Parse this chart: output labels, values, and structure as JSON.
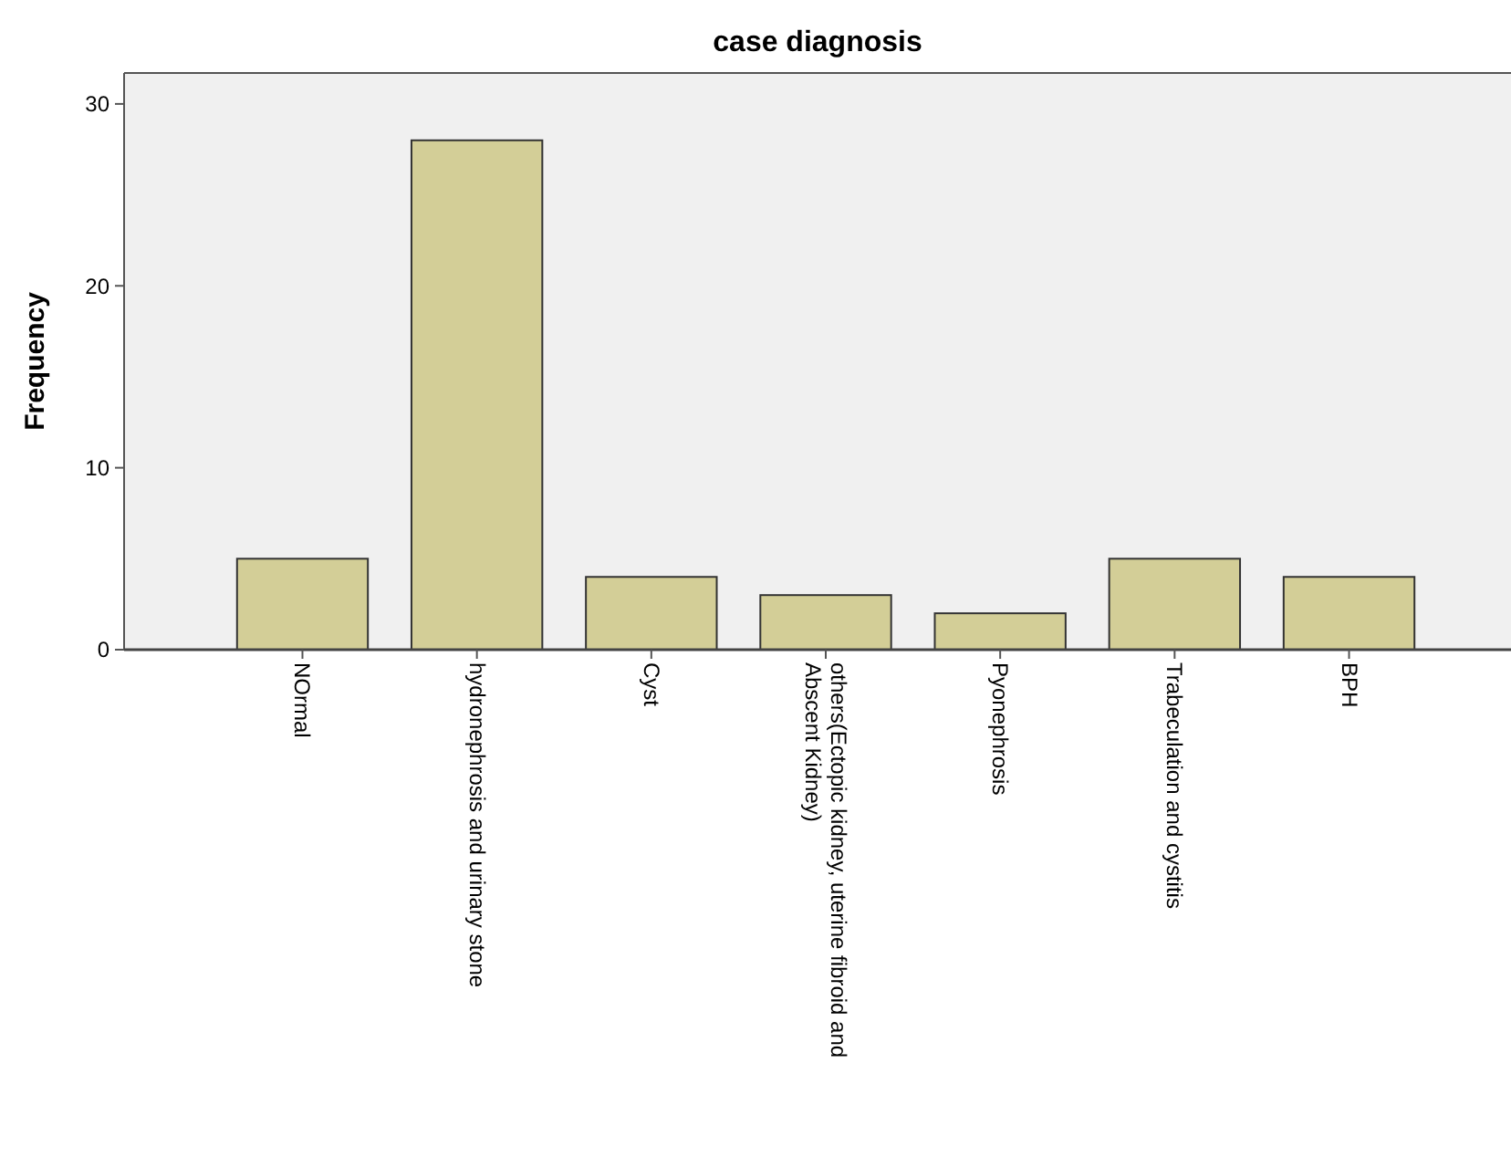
{
  "chart_data": {
    "type": "bar",
    "title": "case diagnosis",
    "ylabel": "Frequency",
    "categories": [
      "NOrmal",
      "hydronephrosis and urinary stone",
      "Cyst",
      "others(Ectopic kidney, uterine fibroid and Abscent Kidney)",
      "Pyonephrosis",
      "Trabeculation and cystitis",
      "BPH"
    ],
    "values": [
      5,
      28,
      4,
      3,
      2,
      5,
      4
    ],
    "color": "#d3ce97",
    "ylim": [
      0,
      31.7
    ],
    "yticks": [
      0,
      10,
      20,
      30
    ],
    "grid": false
  }
}
